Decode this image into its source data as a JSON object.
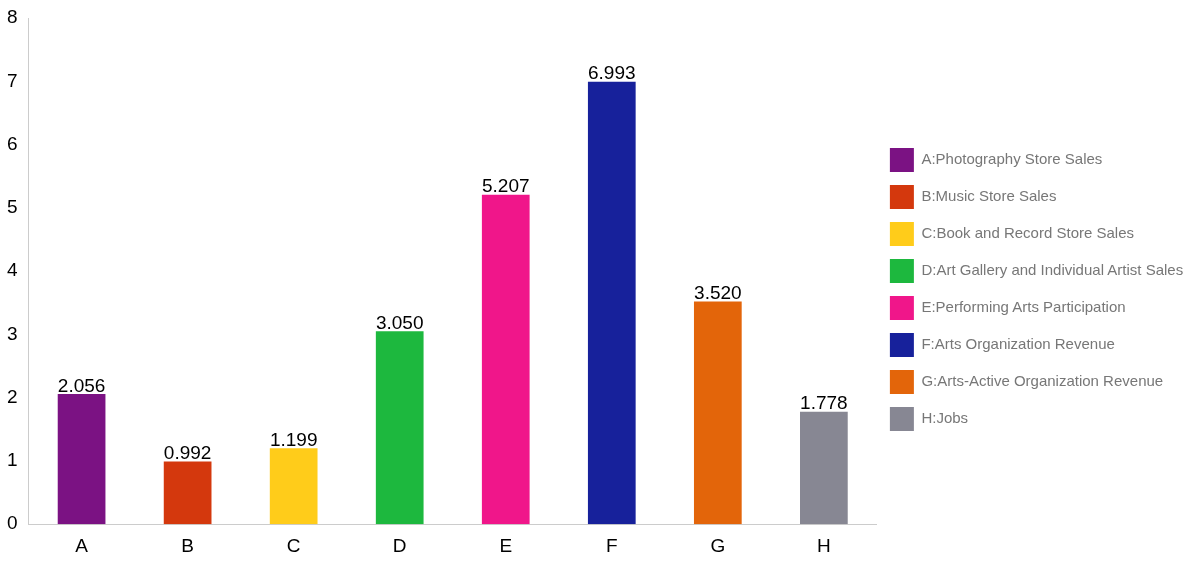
{
  "chart_data": {
    "type": "bar",
    "categories": [
      "A",
      "B",
      "C",
      "D",
      "E",
      "F",
      "G",
      "H"
    ],
    "series": [
      {
        "name": "A:Photography Store Sales",
        "color": "#7b1283",
        "values": [
          2.056,
          null,
          null,
          null,
          null,
          null,
          null,
          null
        ],
        "value_labels": [
          "2.056",
          null,
          null,
          null,
          null,
          null,
          null,
          null
        ]
      },
      {
        "name": "B:Music Store Sales",
        "color": "#d4380d",
        "values": [
          null,
          0.992,
          null,
          null,
          null,
          null,
          null,
          null
        ],
        "value_labels": [
          null,
          "0.992",
          null,
          null,
          null,
          null,
          null,
          null
        ]
      },
      {
        "name": "C:Book and Record Store Sales",
        "color": "#ffcc1a",
        "values": [
          null,
          null,
          1.199,
          null,
          null,
          null,
          null,
          null
        ],
        "value_labels": [
          null,
          null,
          "1.199",
          null,
          null,
          null,
          null,
          null
        ]
      },
      {
        "name": "D:Art Gallery and Individual Artist Sales",
        "color": "#1db83e",
        "values": [
          null,
          null,
          null,
          3.05,
          null,
          null,
          null,
          null
        ],
        "value_labels": [
          null,
          null,
          null,
          "3.050",
          null,
          null,
          null,
          null
        ]
      },
      {
        "name": "E:Performing Arts Participation",
        "color": "#f0168a",
        "values": [
          null,
          null,
          null,
          null,
          5.207,
          null,
          null,
          null
        ],
        "value_labels": [
          null,
          null,
          null,
          null,
          "5.207",
          null,
          null,
          null
        ]
      },
      {
        "name": "F:Arts Organization Revenue",
        "color": "#17219b",
        "values": [
          null,
          null,
          null,
          null,
          null,
          6.993,
          null,
          null
        ],
        "value_labels": [
          null,
          null,
          null,
          null,
          null,
          "6.993",
          null,
          null
        ]
      },
      {
        "name": "G:Arts-Active Organization Revenue",
        "color": "#e3650a",
        "values": [
          null,
          null,
          null,
          null,
          null,
          null,
          3.52,
          null
        ],
        "value_labels": [
          null,
          null,
          null,
          null,
          null,
          null,
          "3.520",
          null
        ]
      },
      {
        "name": "H:Jobs",
        "color": "#878793",
        "values": [
          null,
          null,
          null,
          null,
          null,
          null,
          null,
          1.778
        ],
        "value_labels": [
          null,
          null,
          null,
          null,
          null,
          null,
          null,
          "1.778"
        ]
      }
    ],
    "ylim": [
      0,
      8
    ],
    "yticks": [
      0,
      1,
      2,
      3,
      4,
      5,
      6,
      7,
      8
    ],
    "grid": false,
    "legend": "right"
  }
}
